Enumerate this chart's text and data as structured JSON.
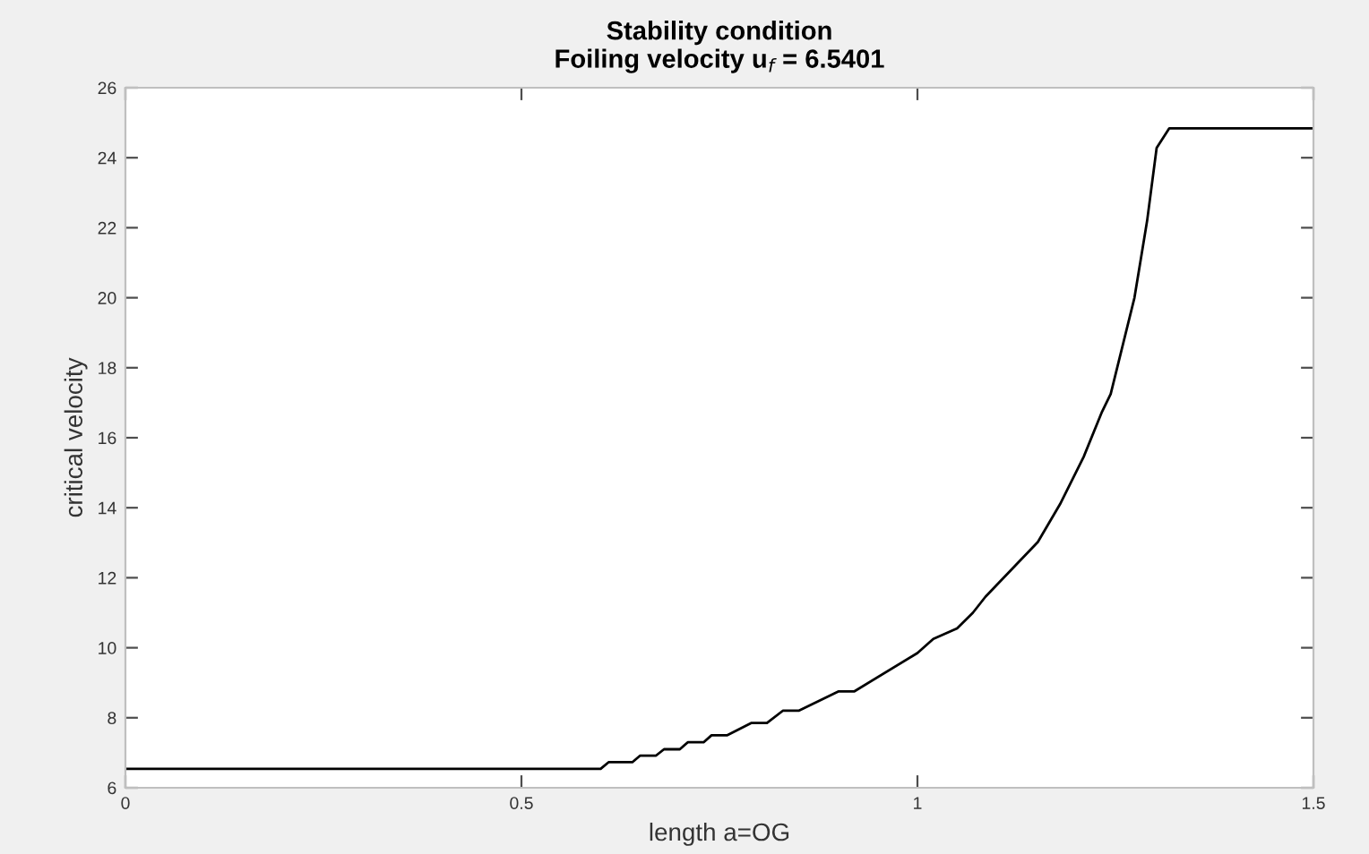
{
  "chart_data": {
    "type": "line",
    "title": "Stability condition",
    "subtitle": "Foiling velocity u$_{f}$ = 6.5401",
    "xlabel": "length a=OG",
    "ylabel": "critical velocity",
    "xlim": [
      0,
      1.5
    ],
    "xticks": [
      0,
      0.5,
      1,
      1.5
    ],
    "ylim": [
      6,
      26
    ],
    "yticks": [
      6,
      8,
      10,
      12,
      14,
      16,
      18,
      20,
      22,
      24,
      26
    ],
    "marker": "none",
    "line_style": "solid",
    "series": [
      {
        "color": "#000000",
        "x": [
          0,
          0.6,
          0.61,
          0.64,
          0.65,
          0.67,
          0.68,
          0.7,
          0.71,
          0.73,
          0.74,
          0.76,
          0.79,
          0.81,
          0.83,
          0.85,
          0.9,
          0.92,
          1.0,
          1.02,
          1.05,
          1.07,
          1.086,
          1.152,
          1.18,
          1.21,
          1.233,
          1.244,
          1.274,
          1.29,
          1.302,
          1.318,
          1.5
        ],
        "values": [
          6.54,
          6.54,
          6.73,
          6.73,
          6.92,
          6.92,
          7.1,
          7.1,
          7.3,
          7.3,
          7.5,
          7.5,
          7.85,
          7.85,
          8.2,
          8.2,
          8.75,
          8.75,
          9.85,
          10.25,
          10.55,
          11.0,
          11.46,
          13.02,
          14.1,
          15.46,
          16.74,
          17.25,
          20.0,
          22.2,
          24.28,
          24.84,
          24.84
        ]
      }
    ]
  }
}
